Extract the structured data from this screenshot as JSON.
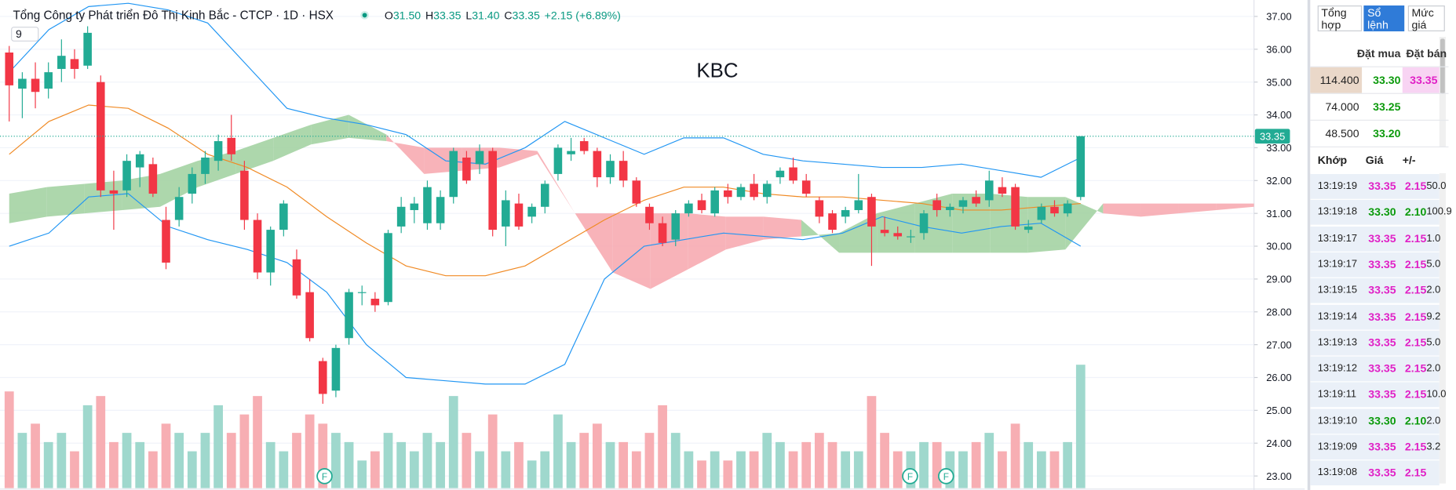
{
  "header": {
    "title": "Tổng Công ty Phát triển Đô Thị Kinh Bắc - CTCP · 1D · HSX",
    "ohlc": [
      {
        "label": "O",
        "value": "31.50"
      },
      {
        "label": "H",
        "value": "33.35"
      },
      {
        "label": "L",
        "value": "31.40"
      },
      {
        "label": "C",
        "value": "33.35"
      }
    ],
    "change": "+2.15 (+6.89%)",
    "indicator_input": "9"
  },
  "chart_data": {
    "type": "candlestick",
    "title": "KBC",
    "open": [
      35.9,
      34.8,
      35.1,
      34.8,
      35.4,
      35.7,
      35.5,
      35.0,
      31.7,
      31.7,
      32.4,
      32.5,
      30.8,
      30.8,
      31.6,
      32.2,
      32.6,
      33.3,
      32.3,
      30.8,
      29.2,
      30.5,
      29.6,
      28.6,
      26.5,
      25.6,
      27.2,
      28.6,
      28.4,
      28.3,
      30.6,
      31.1,
      30.7,
      30.7,
      31.5,
      32.7,
      32.5,
      32.9,
      30.6,
      31.3,
      30.9,
      31.2,
      32.2,
      32.8,
      33.2,
      32.9,
      32.1,
      32.6,
      32.0,
      31.2,
      30.7,
      30.2,
      31.0,
      31.4,
      31.0,
      31.7,
      31.5,
      31.9,
      31.5,
      32.1,
      32.4,
      32.0,
      31.4,
      31.0,
      30.9,
      31.1,
      31.5,
      30.5,
      30.4,
      30.3,
      30.4,
      31.4,
      31.1,
      31.2,
      31.5,
      31.4,
      31.8,
      31.8,
      30.5,
      30.8,
      31.2,
      31.0,
      31.5
    ],
    "high": [
      36.1,
      35.3,
      35.6,
      35.6,
      36.3,
      36.0,
      36.7,
      35.2,
      32.3,
      32.8,
      32.9,
      32.7,
      31.2,
      31.8,
      32.4,
      32.9,
      33.4,
      34.0,
      32.6,
      31.0,
      30.6,
      31.4,
      29.9,
      29.0,
      26.6,
      27.0,
      28.7,
      28.8,
      28.6,
      30.5,
      31.5,
      31.5,
      32.0,
      31.7,
      33.0,
      32.9,
      33.1,
      33.0,
      31.7,
      31.6,
      31.3,
      32.0,
      33.1,
      33.3,
      33.3,
      33.0,
      32.8,
      32.9,
      32.1,
      31.3,
      30.9,
      31.1,
      31.4,
      31.6,
      31.8,
      31.9,
      31.9,
      32.2,
      32.0,
      32.4,
      32.7,
      32.2,
      31.5,
      31.1,
      31.2,
      32.2,
      31.6,
      30.9,
      30.6,
      30.5,
      31.1,
      31.6,
      31.3,
      31.5,
      31.7,
      32.3,
      32.1,
      31.9,
      30.8,
      31.3,
      31.4,
      31.4,
      33.35
    ],
    "low": [
      33.8,
      33.9,
      34.2,
      34.5,
      35.0,
      35.1,
      35.4,
      31.5,
      30.5,
      31.5,
      31.8,
      31.5,
      29.3,
      30.6,
      31.3,
      31.9,
      32.3,
      32.6,
      30.5,
      29.0,
      28.8,
      30.3,
      28.4,
      27.1,
      25.2,
      25.4,
      27.0,
      28.2,
      28.0,
      28.2,
      30.4,
      30.7,
      30.5,
      30.5,
      31.3,
      31.9,
      32.2,
      30.3,
      30.0,
      30.5,
      30.7,
      31.0,
      32.0,
      32.6,
      32.8,
      31.8,
      31.9,
      31.8,
      31.2,
      30.5,
      30.0,
      30.0,
      30.9,
      31.0,
      30.9,
      31.3,
      31.4,
      31.4,
      31.3,
      31.9,
      31.9,
      31.5,
      30.7,
      30.4,
      30.7,
      31.0,
      29.4,
      30.3,
      30.2,
      30.1,
      30.2,
      30.9,
      30.9,
      31.0,
      31.2,
      31.2,
      31.5,
      30.5,
      30.4,
      30.7,
      30.9,
      30.9,
      31.4
    ],
    "close": [
      34.9,
      35.1,
      34.7,
      35.3,
      35.8,
      35.4,
      36.5,
      31.7,
      31.6,
      32.6,
      32.8,
      31.6,
      29.5,
      31.5,
      32.2,
      32.7,
      33.2,
      32.8,
      30.8,
      29.2,
      30.5,
      31.3,
      28.5,
      27.2,
      25.5,
      26.9,
      28.6,
      28.6,
      28.2,
      30.4,
      31.2,
      31.3,
      31.8,
      31.5,
      32.9,
      32.0,
      32.9,
      30.5,
      31.4,
      30.6,
      31.2,
      31.9,
      33.0,
      32.9,
      32.9,
      32.1,
      32.6,
      32.0,
      31.3,
      30.7,
      30.1,
      31.0,
      31.3,
      31.1,
      31.7,
      31.5,
      31.8,
      31.5,
      31.9,
      32.3,
      32.0,
      31.6,
      30.9,
      30.5,
      31.1,
      31.4,
      30.6,
      30.4,
      30.3,
      30.3,
      31.0,
      31.1,
      31.2,
      31.4,
      31.3,
      32.0,
      31.6,
      30.6,
      30.6,
      31.2,
      31.0,
      31.3,
      33.35
    ],
    "volume": [
      10.5,
      6,
      7,
      5,
      6,
      4,
      9,
      10,
      5,
      6,
      5,
      4,
      7,
      6,
      4,
      6,
      9,
      6,
      8,
      10,
      5,
      4,
      6,
      8,
      7,
      6,
      5,
      3,
      4,
      6,
      5,
      4,
      6,
      5,
      10,
      6,
      4,
      8,
      4,
      5,
      3,
      4,
      8,
      5,
      6,
      7,
      5,
      5,
      4,
      6,
      9,
      6,
      4,
      3,
      4,
      3,
      4,
      4,
      6,
      5,
      4,
      5,
      6,
      5,
      4,
      4,
      10,
      6,
      4,
      4,
      5,
      5,
      4,
      4,
      5,
      6,
      4,
      7,
      5,
      4,
      4,
      5,
      13.4
    ],
    "up_color": "#22ab94",
    "down_color": "#f23645",
    "volume_up_color": "#9fd8cd",
    "volume_down_color": "#f7aeb3",
    "bollinger": {
      "color": "#2196f3",
      "middle_color": "#f08a24",
      "upper": [
        35.3,
        36.6,
        37.3,
        37.4,
        37.2,
        36.8,
        35.5,
        34.2,
        33.9,
        33.7,
        33.4,
        32.6,
        32.5,
        33.0,
        33.8,
        33.3,
        32.8,
        33.3,
        33.3,
        32.8,
        32.6,
        32.5,
        32.4,
        32.4,
        32.5,
        32.3,
        32.1,
        32.7
      ],
      "middle": [
        32.8,
        33.8,
        34.3,
        34.2,
        33.6,
        32.8,
        32.4,
        31.8,
        30.9,
        30.1,
        29.4,
        29.1,
        29.1,
        29.4,
        30.1,
        30.8,
        31.4,
        31.8,
        31.8,
        31.6,
        31.5,
        31.5,
        31.4,
        31.3,
        31.1,
        31.1,
        31.2,
        31.3
      ],
      "lower": [
        30.0,
        30.4,
        31.5,
        31.6,
        30.6,
        30.2,
        29.9,
        29.5,
        28.6,
        27.0,
        26.0,
        25.9,
        25.8,
        25.8,
        26.4,
        29.0,
        30.0,
        30.2,
        30.4,
        30.3,
        30.2,
        30.4,
        30.9,
        30.6,
        30.4,
        30.6,
        30.7,
        30.0
      ]
    },
    "cloud": {
      "up_color": "#9fd09e",
      "down_color": "#f7a6ad",
      "span_a": [
        31.6,
        31.8,
        31.9,
        32.0,
        32.2,
        32.6,
        32.9,
        33.3,
        33.7,
        34.0,
        33.4,
        32.2,
        32.3,
        32.4,
        32.8,
        31.0,
        29.2,
        28.7,
        29.3,
        29.9,
        30.2,
        30.3,
        30.4,
        31.0,
        31.3,
        31.6,
        31.6,
        31.5,
        31.5,
        31.0,
        30.9,
        31.0,
        31.1,
        31.2
      ],
      "span_b": [
        30.7,
        30.9,
        31.0,
        31.1,
        31.2,
        31.8,
        32.2,
        32.6,
        33.1,
        33.3,
        33.2,
        33.0,
        33.0,
        33.0,
        32.9,
        31.0,
        31.0,
        31.0,
        31.0,
        30.9,
        30.9,
        30.8,
        29.8,
        29.8,
        29.8,
        29.8,
        29.8,
        29.8,
        29.9,
        31.3,
        31.3,
        31.3,
        31.3,
        31.3
      ]
    },
    "markers": [
      "F",
      "F",
      "F"
    ],
    "ylim": [
      22.63,
      37.5
    ],
    "yticks": [
      {
        "value": 37,
        "label": "37.00"
      },
      {
        "value": 36,
        "label": "36.00"
      },
      {
        "value": 35,
        "label": "35.00"
      },
      {
        "value": 34,
        "label": "34.00"
      },
      {
        "value": 33,
        "label": "33.00"
      },
      {
        "value": 32,
        "label": "32.00"
      },
      {
        "value": 31,
        "label": "31.00"
      },
      {
        "value": 30,
        "label": "30.00"
      },
      {
        "value": 29,
        "label": "29.00"
      },
      {
        "value": 28,
        "label": "28.00"
      },
      {
        "value": 27,
        "label": "27.00"
      },
      {
        "value": 26,
        "label": "26.00"
      },
      {
        "value": 25,
        "label": "25.00"
      },
      {
        "value": 24,
        "label": "24.00"
      },
      {
        "value": 23,
        "label": "23.00"
      }
    ],
    "grid": true
  },
  "panel": {
    "tabs": [
      "Tổng hợp",
      "Sổ lệnh",
      "Mức giá"
    ],
    "book_headers": [
      "Đặt mua",
      "Đặt bán"
    ],
    "book_rows": [
      [
        "114.400",
        "33.30",
        "33.35"
      ],
      [
        "74.000",
        "33.25"
      ],
      [
        "48.500",
        "33.20"
      ]
    ],
    "trade_headers": [
      "Khớp",
      "Giá",
      "+/-"
    ],
    "trades": [
      [
        "13:19:19",
        "33.35",
        "2.15",
        "50.0"
      ],
      [
        "13:19:18",
        "33.30",
        "2.10",
        "100.9"
      ],
      [
        "13:19:17",
        "33.35",
        "2.15",
        "1.0"
      ],
      [
        "13:19:17",
        "33.35",
        "2.15",
        "5.0"
      ],
      [
        "13:19:15",
        "33.35",
        "2.15",
        "2.0"
      ],
      [
        "13:19:14",
        "33.35",
        "2.15",
        "9.2"
      ],
      [
        "13:19:13",
        "33.35",
        "2.15",
        "5.0"
      ],
      [
        "13:19:12",
        "33.35",
        "2.15",
        "2.0"
      ],
      [
        "13:19:11",
        "33.35",
        "2.15",
        "10.0"
      ],
      [
        "13:19:10",
        "33.30",
        "2.10",
        "2.0"
      ],
      [
        "13:19:09",
        "33.35",
        "2.15",
        "3.2"
      ],
      [
        "13:19:08",
        "33.35",
        "2.15"
      ]
    ]
  }
}
